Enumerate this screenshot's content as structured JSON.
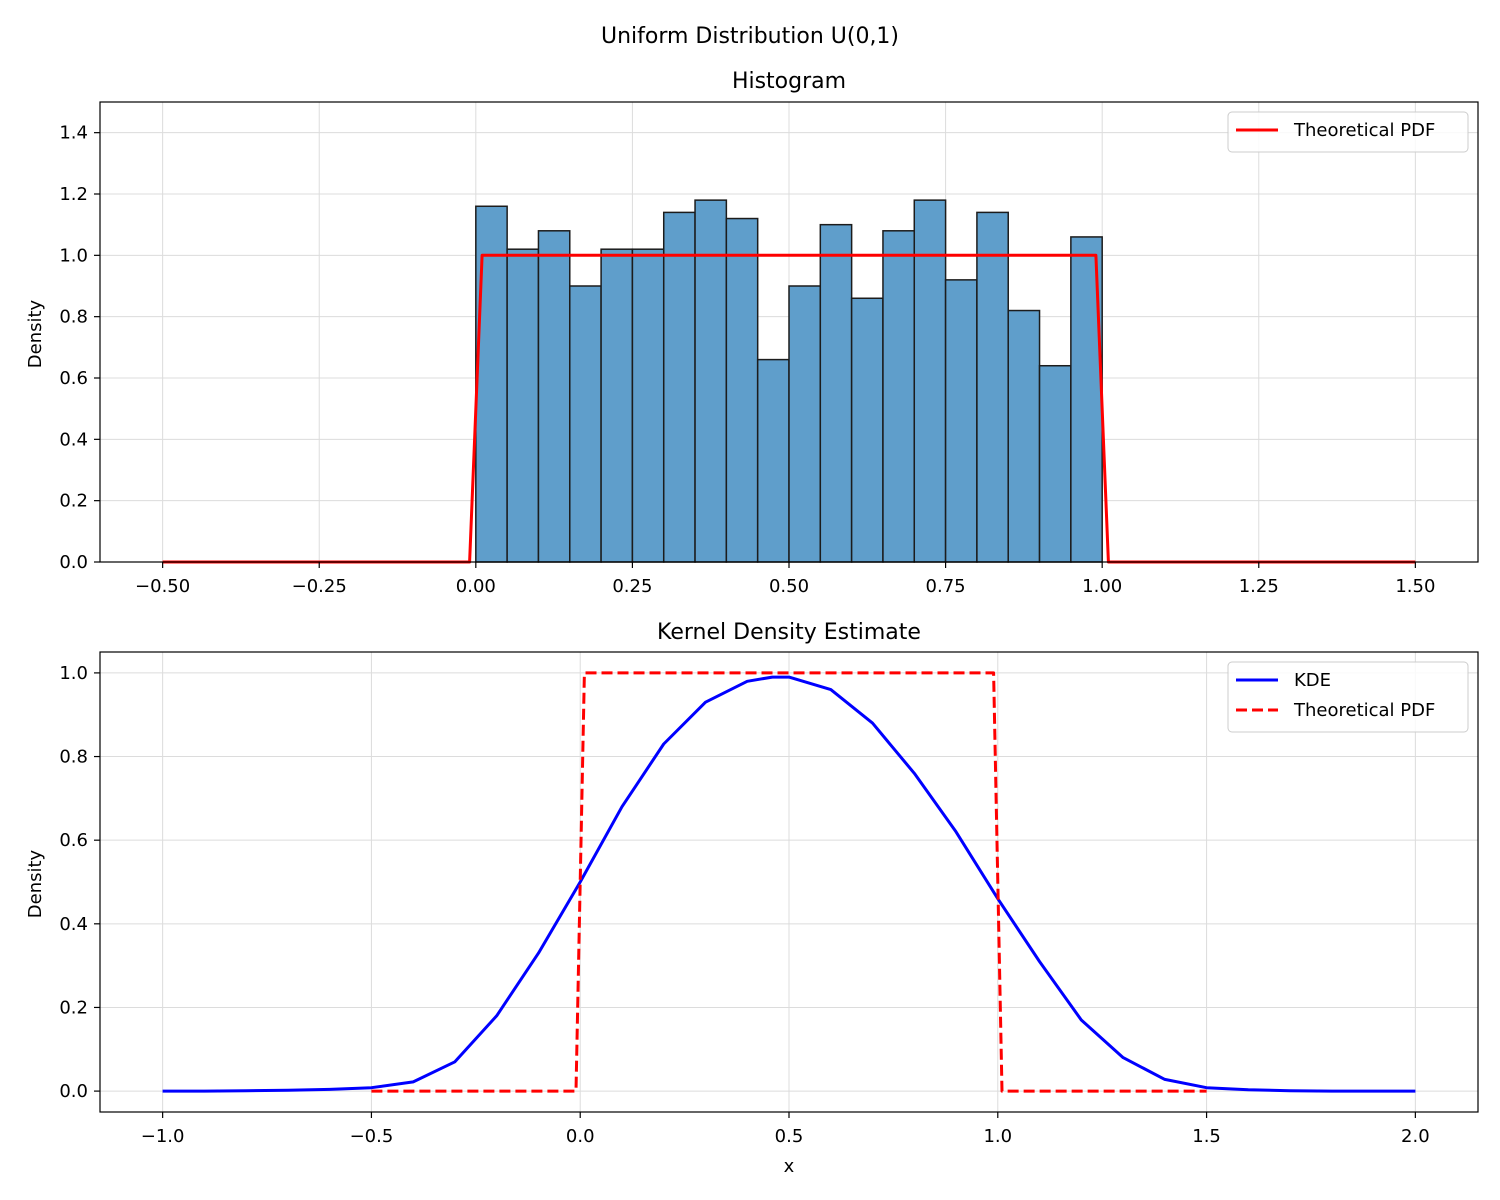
{
  "figure": {
    "suptitle": "Uniform Distribution U(0,1)"
  },
  "chart_data": [
    {
      "type": "bar",
      "title": "Histogram",
      "xlabel": "",
      "ylabel": "Density",
      "xlim": [
        -0.6,
        1.6
      ],
      "ylim": [
        0,
        1.5
      ],
      "xticks": [
        -0.5,
        -0.25,
        0.0,
        0.25,
        0.5,
        0.75,
        1.0,
        1.25,
        1.5
      ],
      "xtick_labels": [
        "−0.50",
        "−0.25",
        "0.00",
        "0.25",
        "0.50",
        "0.75",
        "1.00",
        "1.25",
        "1.50"
      ],
      "yticks": [
        0.0,
        0.2,
        0.4,
        0.6,
        0.8,
        1.0,
        1.2,
        1.4
      ],
      "ytick_labels": [
        "0.0",
        "0.2",
        "0.4",
        "0.6",
        "0.8",
        "1.0",
        "1.2",
        "1.4"
      ],
      "grid": true,
      "legend_position": "top-right",
      "bin_edges": [
        0.0,
        0.05,
        0.1,
        0.15,
        0.2,
        0.25,
        0.3,
        0.35,
        0.4,
        0.45,
        0.5,
        0.55,
        0.6,
        0.65,
        0.7,
        0.75,
        0.8,
        0.85,
        0.9,
        0.95,
        1.0
      ],
      "values": [
        1.16,
        1.02,
        1.08,
        0.9,
        1.02,
        1.02,
        1.14,
        1.18,
        1.12,
        0.66,
        0.9,
        1.1,
        0.86,
        1.08,
        1.18,
        0.92,
        1.14,
        0.82,
        0.64,
        1.06
      ],
      "bar_color": "#5f9ecb",
      "bar_edge_color": "#1c1c1c",
      "series": [
        {
          "name": "Theoretical PDF",
          "style": "solid",
          "color": "#ff0000",
          "x": [
            -0.5,
            -0.01,
            0.01,
            0.99,
            1.01,
            1.5
          ],
          "y": [
            0,
            0,
            1,
            1,
            0,
            0
          ]
        }
      ]
    },
    {
      "type": "line",
      "title": "Kernel Density Estimate",
      "xlabel": "x",
      "ylabel": "Density",
      "xlim": [
        -1.15,
        2.15
      ],
      "ylim": [
        -0.05,
        1.05
      ],
      "xticks": [
        -1.0,
        -0.5,
        0.0,
        0.5,
        1.0,
        1.5,
        2.0
      ],
      "xtick_labels": [
        "−1.0",
        "−0.5",
        "0.0",
        "0.5",
        "1.0",
        "1.5",
        "2.0"
      ],
      "yticks": [
        0.0,
        0.2,
        0.4,
        0.6,
        0.8,
        1.0
      ],
      "ytick_labels": [
        "0.0",
        "0.2",
        "0.4",
        "0.6",
        "0.8",
        "1.0"
      ],
      "grid": true,
      "legend_position": "top-right",
      "series": [
        {
          "name": "KDE",
          "style": "solid",
          "color": "#0000ff",
          "x": [
            -1.0,
            -0.9,
            -0.8,
            -0.7,
            -0.6,
            -0.5,
            -0.4,
            -0.3,
            -0.2,
            -0.1,
            0.0,
            0.1,
            0.2,
            0.3,
            0.4,
            0.46,
            0.5,
            0.6,
            0.7,
            0.8,
            0.9,
            1.0,
            1.1,
            1.2,
            1.3,
            1.4,
            1.5,
            1.6,
            1.7,
            1.8,
            1.9,
            2.0
          ],
          "y": [
            0.0,
            0.0,
            0.001,
            0.002,
            0.004,
            0.008,
            0.022,
            0.07,
            0.18,
            0.33,
            0.5,
            0.68,
            0.83,
            0.93,
            0.98,
            0.99,
            0.99,
            0.96,
            0.88,
            0.76,
            0.62,
            0.46,
            0.31,
            0.17,
            0.08,
            0.028,
            0.008,
            0.003,
            0.001,
            0.0,
            0.0,
            0.0
          ]
        },
        {
          "name": "Theoretical PDF",
          "style": "dashed",
          "color": "#ff0000",
          "x": [
            -0.5,
            -0.01,
            0.01,
            0.99,
            1.01,
            1.5
          ],
          "y": [
            0,
            0,
            1,
            1,
            0,
            0
          ]
        }
      ]
    }
  ]
}
